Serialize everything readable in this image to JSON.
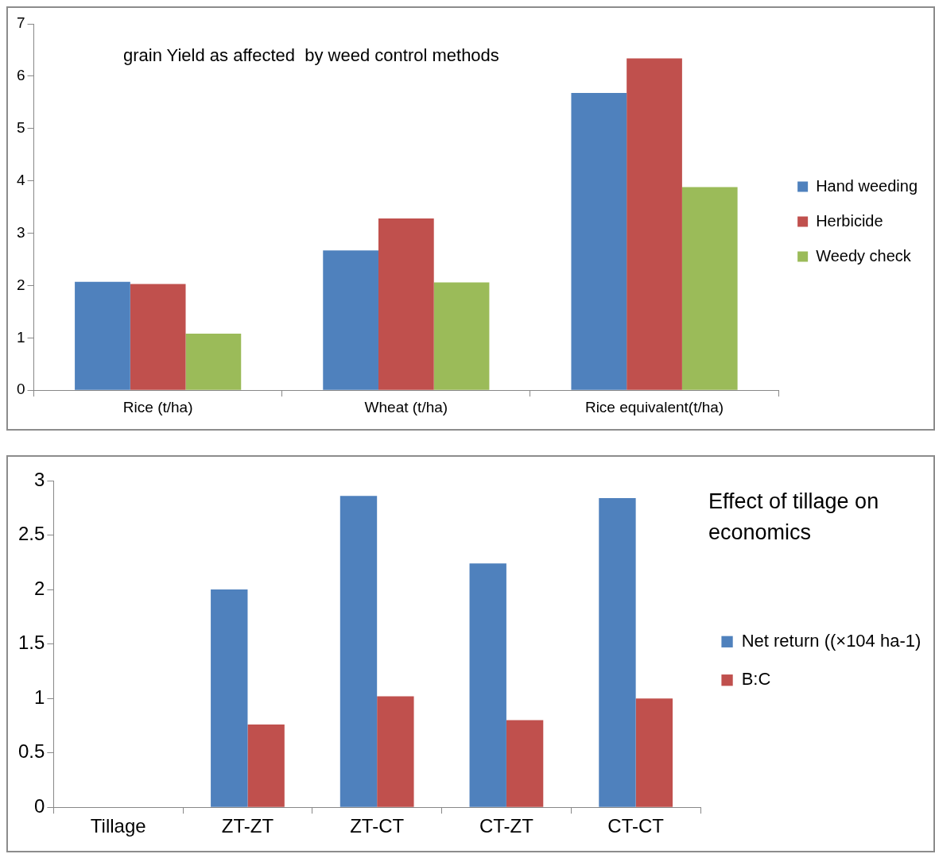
{
  "chart_data": [
    {
      "type": "bar",
      "title": "grain Yield as affected  by weed control methods",
      "categories": [
        "Rice (t/ha)",
        "Wheat (t/ha)",
        "Rice equivalent(t/ha)"
      ],
      "series": [
        {
          "name": "Hand weeding",
          "color": "#4f81bd",
          "values": [
            2.07,
            2.67,
            5.68
          ]
        },
        {
          "name": "Herbicide",
          "color": "#c0504d",
          "values": [
            2.03,
            3.28,
            6.34
          ]
        },
        {
          "name": "Weedy check",
          "color": "#9bbb59",
          "values": [
            1.08,
            2.06,
            3.88
          ]
        }
      ],
      "ylim": [
        0,
        7
      ],
      "yticks": [
        0,
        1,
        2,
        3,
        4,
        5,
        6,
        7
      ],
      "grid": false,
      "legend": "right"
    },
    {
      "type": "bar",
      "title": "Effect of tillage on economics",
      "categories": [
        "Tillage",
        "ZT-ZT",
        "ZT-CT",
        "CT-ZT",
        "CT-CT"
      ],
      "series": [
        {
          "name": "Net return ((×104 ha-1)",
          "color": "#4f81bd",
          "values": [
            null,
            2.0,
            2.86,
            2.24,
            2.84
          ]
        },
        {
          "name": "B:C",
          "color": "#c0504d",
          "values": [
            null,
            0.76,
            1.02,
            0.8,
            1.0
          ]
        }
      ],
      "ylim": [
        0,
        3
      ],
      "yticks": [
        0,
        0.5,
        1,
        1.5,
        2,
        2.5,
        3
      ],
      "grid": false,
      "legend": "right"
    }
  ]
}
